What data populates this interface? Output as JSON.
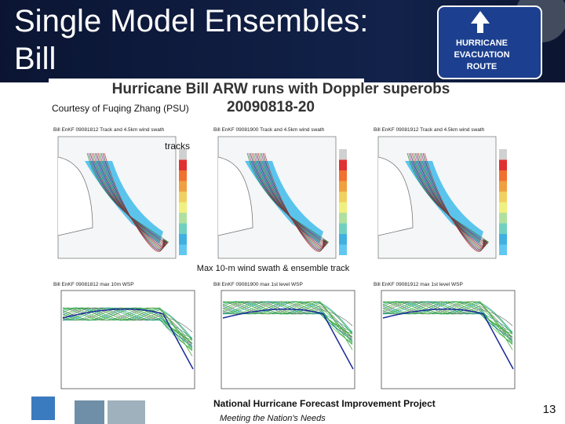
{
  "header": {
    "title_lines": [
      "Single Model Ensembles:",
      "Bill"
    ],
    "sign_lines": [
      "HURRICANE",
      "EVACUATION",
      "ROUTE"
    ]
  },
  "figure": {
    "title": "Hurricane Bill ARW runs with Doppler superobs",
    "date": "20090818-20",
    "credit": "Courtesy of Fuqing Zhang (PSU)",
    "tracks_label": "tracks",
    "swath_label": "Max 10-m wind swath & ensemble track",
    "panels": [
      "Bill EnKF 09081812 Track and 4.5km wind swath",
      "Bill EnKF 09081900 Track and 4.5km wind swath",
      "Bill EnKF 09081912 Track and 4.5km wind swath"
    ],
    "plots": [
      "Bill EnKF 09081812 max 10m WSP",
      "Bill EnKF 09081900 max 1st level WSP",
      "Bill EnKF 09081912 max 1st level WSP"
    ]
  },
  "footer": {
    "project": "National Hurricane Forecast Improvement Project",
    "motto": "Meeting the Nation's Needs",
    "page": "13"
  }
}
